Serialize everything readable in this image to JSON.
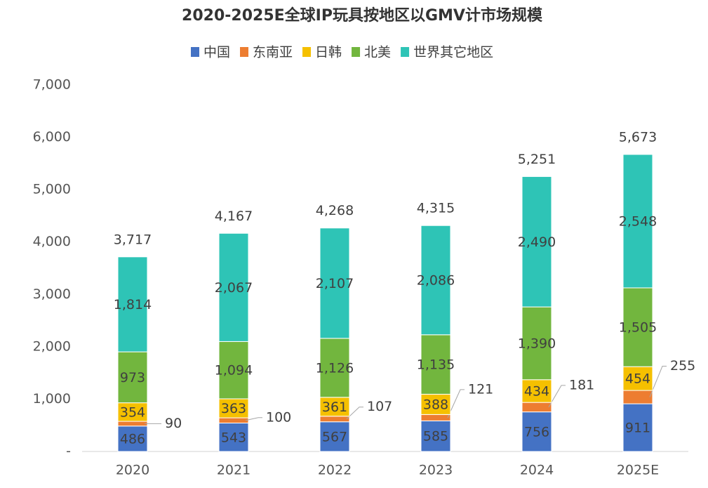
{
  "chart_data": {
    "type": "stacked_bar",
    "title": "2020-2025E全球IP玩具按地区以GMV计市场规模",
    "categories": [
      "2020",
      "2021",
      "2022",
      "2023",
      "2024",
      "2025E"
    ],
    "series": [
      {
        "name": "中国",
        "color": "#4472c4",
        "values": [
          486,
          543,
          567,
          585,
          756,
          911
        ]
      },
      {
        "name": "东南亚",
        "color": "#ed7d31",
        "values": [
          90,
          100,
          107,
          121,
          181,
          255
        ]
      },
      {
        "name": "日韩",
        "color": "#f5c000",
        "values": [
          354,
          363,
          361,
          388,
          434,
          454
        ]
      },
      {
        "name": "北美",
        "color": "#72b63e",
        "values": [
          973,
          1094,
          1126,
          1135,
          1390,
          1505
        ],
        "value_labels": [
          "973",
          "1,094",
          "1,126",
          "1,135",
          "1,390",
          "1,505"
        ]
      },
      {
        "name": "世界其它地区",
        "color": "#2ec4b6",
        "values": [
          1814,
          2067,
          2107,
          2086,
          2490,
          2548
        ],
        "value_labels": [
          "1,814",
          "2,067",
          "2,107",
          "2,086",
          "2,490",
          "2,548"
        ]
      }
    ],
    "totals": [
      3717,
      4167,
      4268,
      4315,
      5251,
      5673
    ],
    "total_labels": [
      "3,717",
      "4,167",
      "4,268",
      "4,315",
      "5,251",
      "5,673"
    ],
    "ylim": [
      0,
      7000
    ],
    "yticks": [
      {
        "value": 0,
        "label": "-"
      },
      {
        "value": 1000,
        "label": "1,000"
      },
      {
        "value": 2000,
        "label": "2,000"
      },
      {
        "value": 3000,
        "label": "3,000"
      },
      {
        "value": 4000,
        "label": "4,000"
      },
      {
        "value": 5000,
        "label": "5,000"
      },
      {
        "value": 6000,
        "label": "6,000"
      },
      {
        "value": 7000,
        "label": "7,000"
      }
    ],
    "grid": false
  }
}
